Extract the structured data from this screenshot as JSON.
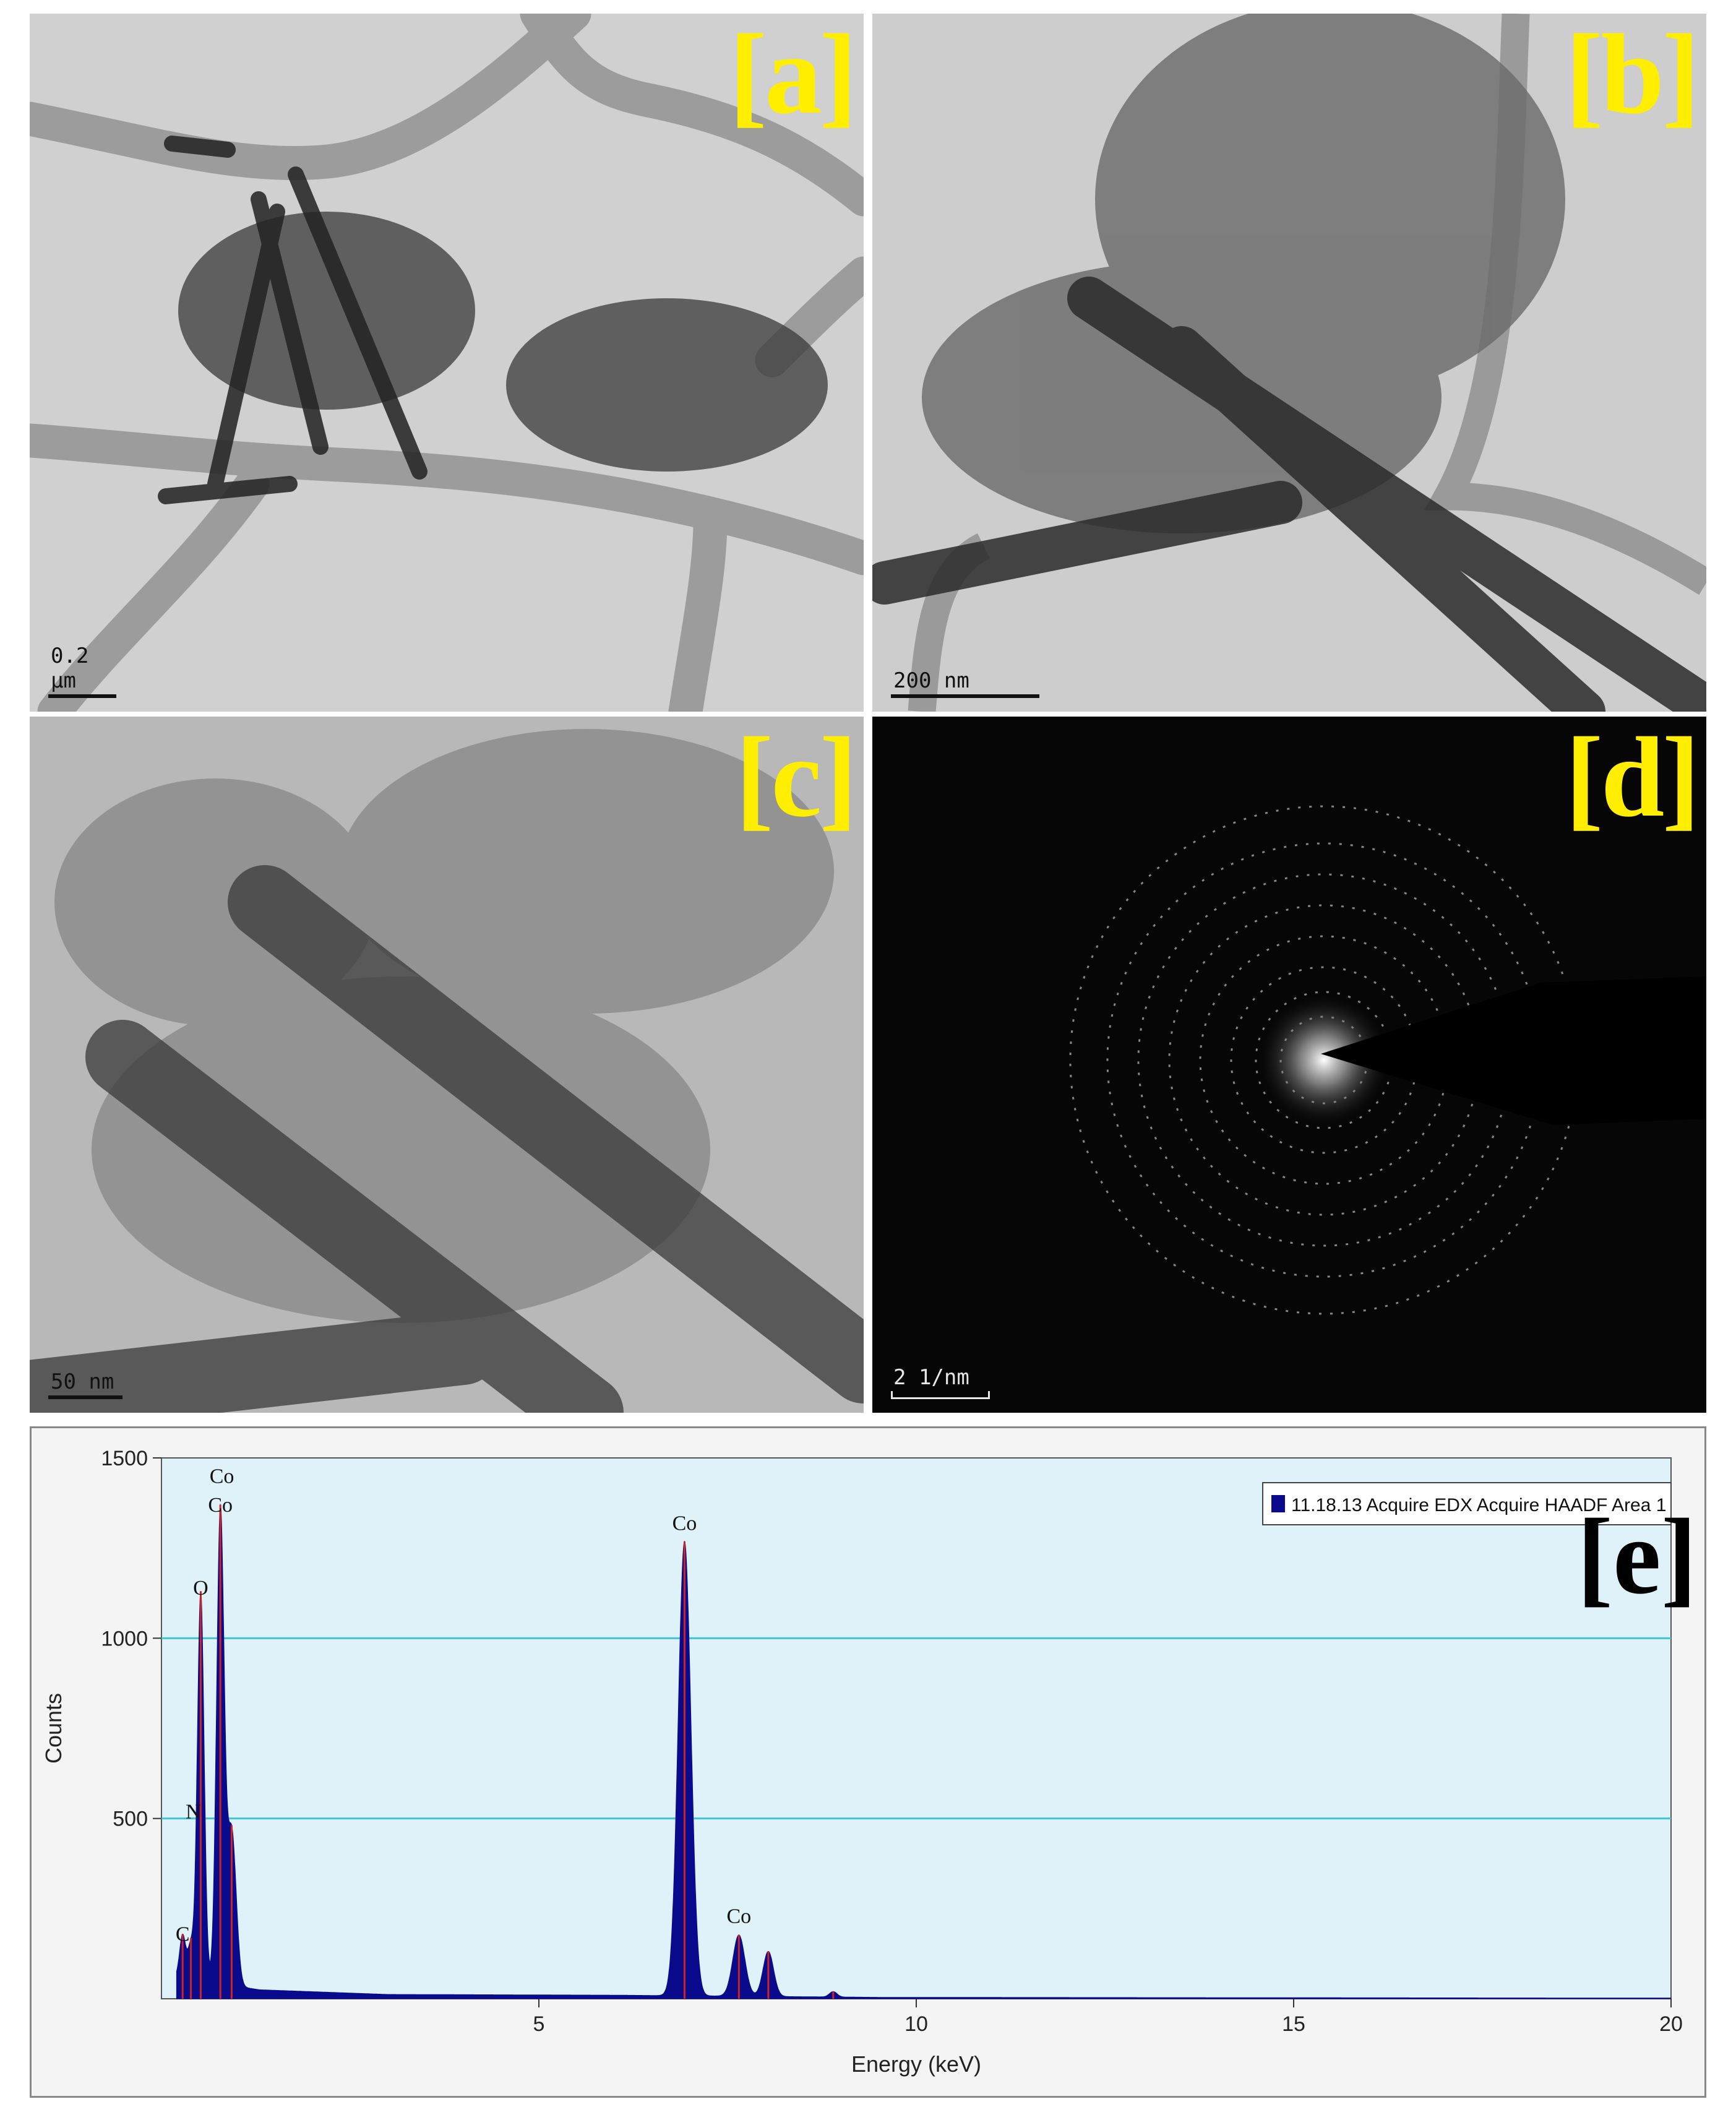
{
  "panels": {
    "a": {
      "label": "[a]",
      "scale": "0.2 µm"
    },
    "b": {
      "label": "[b]",
      "scale": "200 nm"
    },
    "c": {
      "label": "[c]",
      "scale": "50 nm"
    },
    "d": {
      "label": "[d]",
      "scale": "2 1/nm"
    },
    "e": {
      "label": "[e]"
    }
  },
  "chart_data": {
    "type": "area",
    "xlabel": "Energy (keV)",
    "ylabel": "Counts",
    "xlim": [
      0,
      20
    ],
    "ylim": [
      0,
      1500
    ],
    "x_ticks": [
      5,
      10,
      15,
      20
    ],
    "y_ticks": [
      500,
      1000,
      1500
    ],
    "grid": "horizontal",
    "legend": {
      "placement": "top-right",
      "entries": [
        "11.18.13 Acquire EDX Acquire HAADF Area 1"
      ]
    },
    "colors": {
      "fill": "#0a0a8c",
      "peak_line": "#cc2222",
      "plot_bg": "#dff1f9",
      "grid": "#3fc5d8"
    },
    "series": [
      {
        "name": "11.18.13 Acquire EDX Acquire HAADF Area 1",
        "peaks": [
          {
            "x": 0.28,
            "y": 120,
            "width": 0.04
          },
          {
            "x": 0.39,
            "y": 95,
            "width": 0.04
          },
          {
            "x": 0.52,
            "y": 1080,
            "width": 0.045
          },
          {
            "x": 0.78,
            "y": 1310,
            "width": 0.05
          },
          {
            "x": 0.93,
            "y": 430,
            "width": 0.06
          },
          {
            "x": 6.93,
            "y": 1260,
            "width": 0.085
          },
          {
            "x": 7.65,
            "y": 170,
            "width": 0.08
          },
          {
            "x": 8.04,
            "y": 125,
            "width": 0.07
          },
          {
            "x": 8.9,
            "y": 15,
            "width": 0.05
          }
        ],
        "background": [
          [
            0.2,
            60
          ],
          [
            1.3,
            25
          ],
          [
            3,
            12
          ],
          [
            6,
            10
          ],
          [
            9.5,
            4
          ],
          [
            20,
            2
          ]
        ]
      }
    ],
    "annotations": [
      {
        "text": "C",
        "x": 0.28,
        "y": 150
      },
      {
        "text": "O",
        "x": 0.52,
        "y": 1110
      },
      {
        "text": "N",
        "x": 0.42,
        "y": 490
      },
      {
        "text": "Co",
        "x": 0.78,
        "y": 1340
      },
      {
        "text": "Co",
        "x": 0.8,
        "y": 1420
      },
      {
        "text": "Co",
        "x": 6.93,
        "y": 1290
      },
      {
        "text": "Co",
        "x": 7.65,
        "y": 200
      }
    ]
  }
}
